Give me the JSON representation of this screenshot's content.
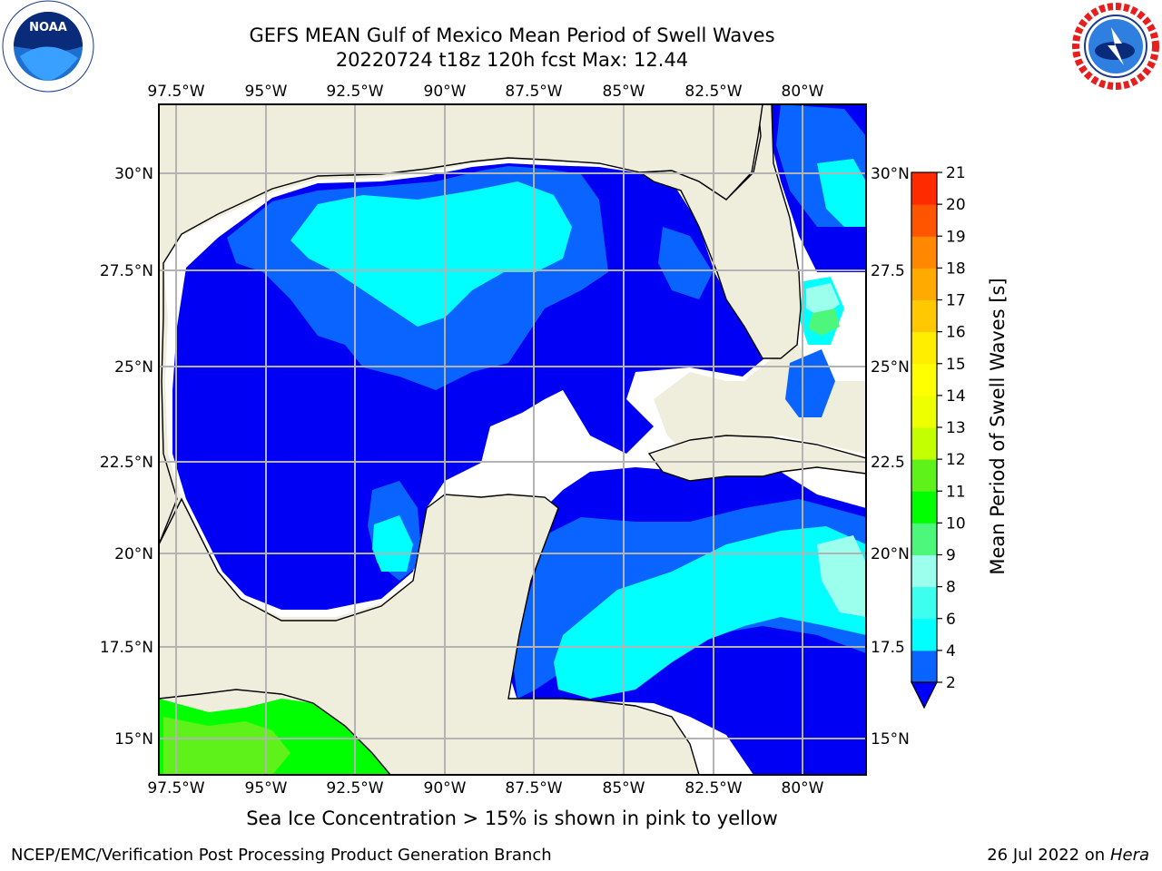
{
  "header": {
    "title_line1": "GEFS MEAN Gulf of Mexico Mean Period of Swell Waves",
    "title_line2": "20220724 t18z 120h fcst   Max: 12.44"
  },
  "logos": {
    "left": "noaa-logo",
    "left_text": "NOAA",
    "right": "nws-logo",
    "right_text": "NATIONAL WEATHER SERVICE"
  },
  "map": {
    "lon_labels": [
      "97.5°W",
      "95°W",
      "92.5°W",
      "90°W",
      "87.5°W",
      "85°W",
      "82.5°W",
      "80°W"
    ],
    "lat_labels_left": [
      "30°N",
      "27.5°N",
      "25°N",
      "22.5°N",
      "20°N",
      "17.5°N",
      "15°N"
    ],
    "lat_labels_right": [
      "30°N",
      "27.5",
      "25°N",
      "22.5",
      "20°N",
      "17.5",
      "15°N"
    ],
    "lon_range": [
      -98,
      -79
    ],
    "lat_range": [
      14,
      31.8
    ],
    "land_color": "#efeedc",
    "grid_color": "#b3b3b3"
  },
  "colorbar": {
    "label": "Mean Period of Swell Waves [s]",
    "ticks": [
      "2",
      "4",
      "6",
      "8",
      "9",
      "10",
      "11",
      "12",
      "13",
      "14",
      "15",
      "16",
      "17",
      "18",
      "19",
      "20",
      "21"
    ],
    "colors": [
      "#0a64ff",
      "#00ffff",
      "#3dfff0",
      "#9cffee",
      "#4cf77c",
      "#00ff00",
      "#5ef11a",
      "#c4ff00",
      "#eeff00",
      "#ffff00",
      "#ffee00",
      "#ffc800",
      "#ffaa00",
      "#ff8800",
      "#ff5500",
      "#ff2a00",
      "#ff0000"
    ],
    "extend_color": "#0000ff"
  },
  "footer": {
    "sea_ice_note": "Sea Ice Concentration > 15% is shown in pink to yellow",
    "left": "NCEP/EMC/Verification Post Processing Product Generation Branch",
    "date": "26 Jul 2022 on",
    "machine": "Hera"
  }
}
